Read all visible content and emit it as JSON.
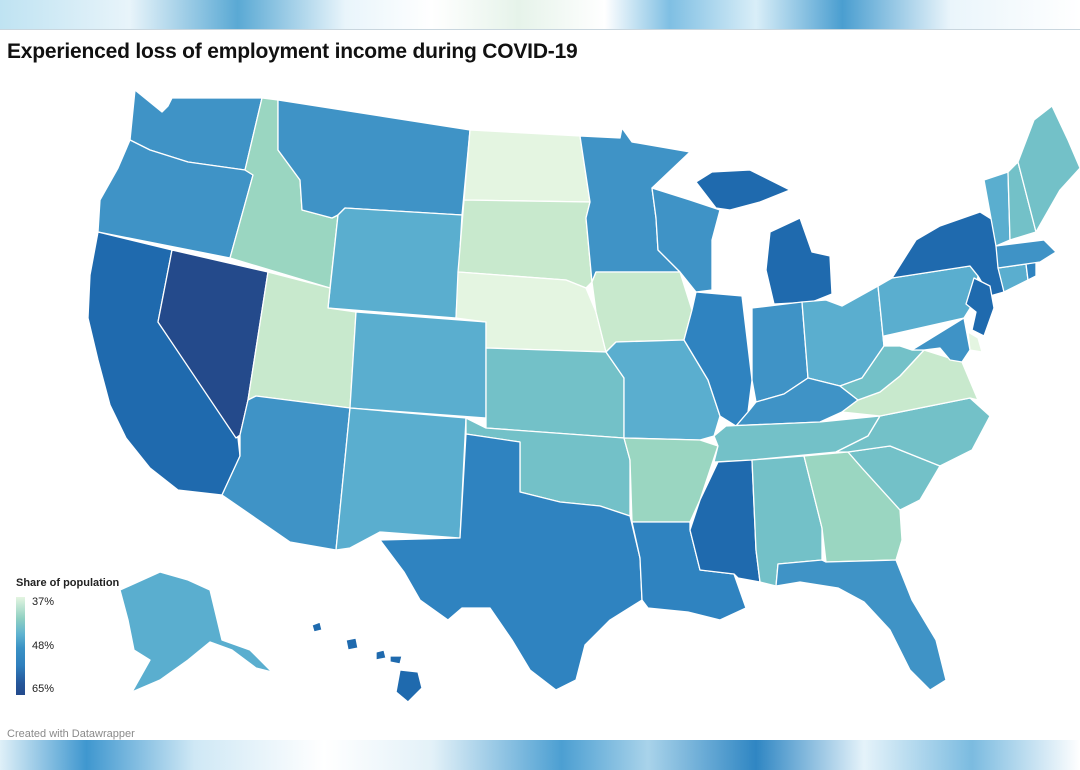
{
  "title": "Experienced loss of employment income during COVID-19",
  "legend": {
    "title": "Share of population",
    "labels": [
      "37%",
      "48%",
      "65%"
    ]
  },
  "credit": "Created with Datawrapper",
  "colors": {
    "very_low": "#e4f5e1",
    "low": "#c8e9cd",
    "low_mid": "#9ad6c1",
    "mid_light": "#73c1c8",
    "mid": "#5aaecf",
    "mid_dark": "#3f93c6",
    "high": "#2f83c0",
    "very_high": "#1f6aae",
    "highest": "#244a8b"
  },
  "states": [
    {
      "name": "Washington",
      "level": "mid_dark"
    },
    {
      "name": "Oregon",
      "level": "mid_dark"
    },
    {
      "name": "California",
      "level": "very_high"
    },
    {
      "name": "Nevada",
      "level": "highest"
    },
    {
      "name": "Idaho",
      "level": "low_mid"
    },
    {
      "name": "Montana",
      "level": "mid_dark"
    },
    {
      "name": "Wyoming",
      "level": "mid"
    },
    {
      "name": "Utah",
      "level": "low"
    },
    {
      "name": "Arizona",
      "level": "mid_dark"
    },
    {
      "name": "Colorado",
      "level": "mid"
    },
    {
      "name": "New Mexico",
      "level": "mid"
    },
    {
      "name": "North Dakota",
      "level": "very_low"
    },
    {
      "name": "South Dakota",
      "level": "low"
    },
    {
      "name": "Nebraska",
      "level": "very_low"
    },
    {
      "name": "Kansas",
      "level": "mid_light"
    },
    {
      "name": "Oklahoma",
      "level": "mid_light"
    },
    {
      "name": "Texas",
      "level": "high"
    },
    {
      "name": "Minnesota",
      "level": "mid_dark"
    },
    {
      "name": "Iowa",
      "level": "low"
    },
    {
      "name": "Missouri",
      "level": "mid"
    },
    {
      "name": "Arkansas",
      "level": "low_mid"
    },
    {
      "name": "Louisiana",
      "level": "high"
    },
    {
      "name": "Wisconsin",
      "level": "mid_dark"
    },
    {
      "name": "Illinois",
      "level": "high"
    },
    {
      "name": "Michigan",
      "level": "very_high"
    },
    {
      "name": "Indiana",
      "level": "mid_dark"
    },
    {
      "name": "Ohio",
      "level": "mid"
    },
    {
      "name": "Kentucky",
      "level": "mid_dark"
    },
    {
      "name": "Tennessee",
      "level": "mid_light"
    },
    {
      "name": "Mississippi",
      "level": "very_high"
    },
    {
      "name": "Alabama",
      "level": "mid_light"
    },
    {
      "name": "Georgia",
      "level": "low_mid"
    },
    {
      "name": "Florida",
      "level": "mid_dark"
    },
    {
      "name": "South Carolina",
      "level": "mid_light"
    },
    {
      "name": "North Carolina",
      "level": "mid_light"
    },
    {
      "name": "Virginia",
      "level": "low"
    },
    {
      "name": "West Virginia",
      "level": "mid_light"
    },
    {
      "name": "Pennsylvania",
      "level": "mid"
    },
    {
      "name": "New York",
      "level": "very_high"
    },
    {
      "name": "New Jersey",
      "level": "very_high"
    },
    {
      "name": "Delaware",
      "level": "very_low"
    },
    {
      "name": "Maryland",
      "level": "mid_dark"
    },
    {
      "name": "Connecticut",
      "level": "mid"
    },
    {
      "name": "Rhode Island",
      "level": "high"
    },
    {
      "name": "Massachusetts",
      "level": "mid_dark"
    },
    {
      "name": "Vermont",
      "level": "mid"
    },
    {
      "name": "New Hampshire",
      "level": "mid_light"
    },
    {
      "name": "Maine",
      "level": "mid_light"
    },
    {
      "name": "Alaska",
      "level": "mid"
    },
    {
      "name": "Hawaii",
      "level": "very_high"
    }
  ]
}
